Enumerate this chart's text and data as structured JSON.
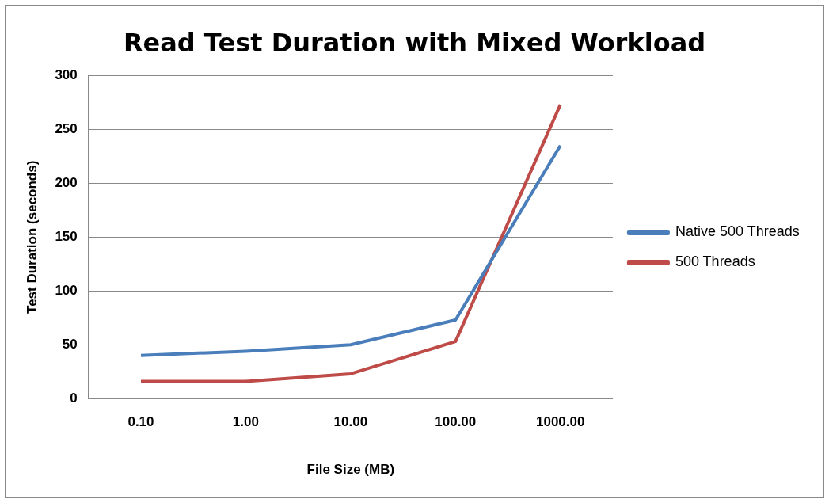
{
  "chart_data": {
    "type": "line",
    "title": "Read Test Duration with Mixed Workload",
    "xlabel": "File Size (MB)",
    "ylabel": "Test Duration (seconds)",
    "categories": [
      "0.10",
      "1.00",
      "10.00",
      "100.00",
      "1000.00"
    ],
    "series": [
      {
        "name": "Native 500 Threads",
        "color": "#4a7ebb",
        "values": [
          40,
          44,
          50,
          73,
          235
        ]
      },
      {
        "name": "500 Threads",
        "color": "#be4b48",
        "values": [
          16,
          16,
          23,
          53,
          273
        ]
      }
    ],
    "ylim": [
      0,
      300
    ],
    "yticks": [
      0,
      50,
      100,
      150,
      200,
      250,
      300
    ],
    "grid": "y",
    "legend": "right",
    "marker": "none",
    "line_style": "solid"
  }
}
